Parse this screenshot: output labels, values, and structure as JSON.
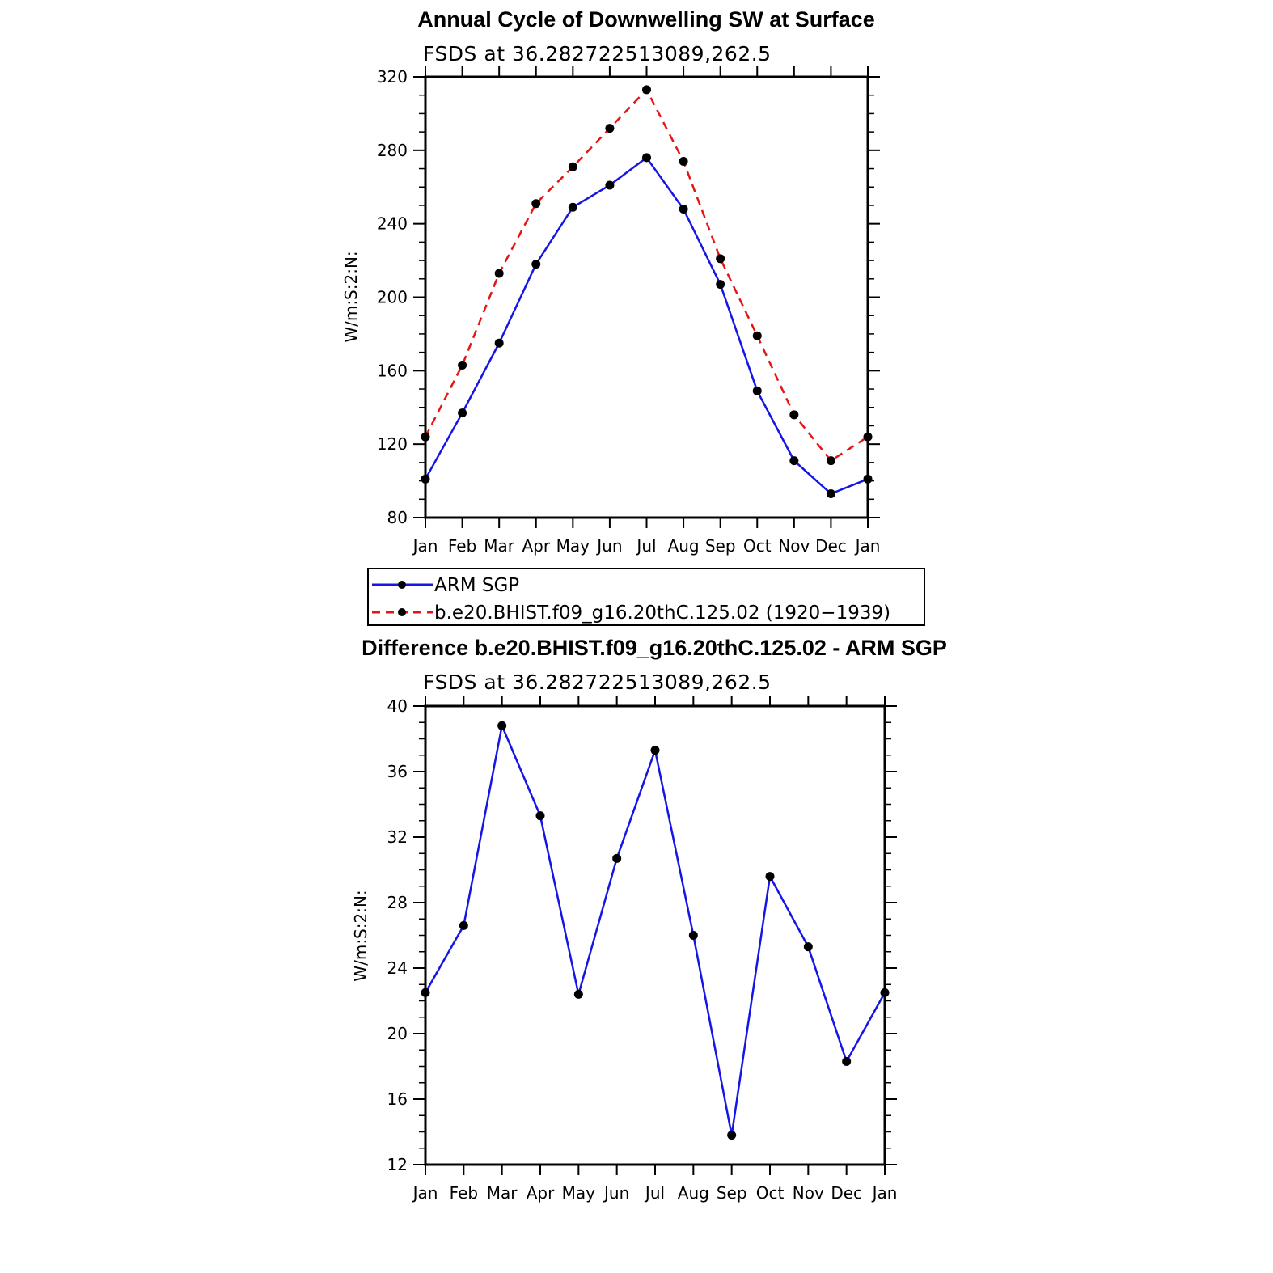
{
  "chart_data": [
    {
      "type": "line",
      "title": "Annual Cycle of Downwelling SW at Surface",
      "subtitle": "FSDS at 36.282722513089,262.5",
      "ylabel": "W/m:S:2:N:",
      "xlabel": "",
      "categories": [
        "Jan",
        "Feb",
        "Mar",
        "Apr",
        "May",
        "Jun",
        "Jul",
        "Aug",
        "Sep",
        "Oct",
        "Nov",
        "Dec",
        "Jan"
      ],
      "ylim": [
        80,
        320
      ],
      "yticks": [
        80,
        120,
        160,
        200,
        240,
        280,
        320
      ],
      "series": [
        {
          "name": "ARM SGP",
          "color": "#1515e6",
          "dash": "solid",
          "values": [
            101,
            137,
            175,
            218,
            249,
            261,
            276,
            248,
            207,
            149,
            111,
            93,
            101
          ]
        },
        {
          "name": "b.e20.BHIST.f09_g16.20thC.125.02 (1920−1939)",
          "color": "#e61515",
          "dash": "dashed",
          "values": [
            124,
            163,
            213,
            251,
            271,
            292,
            313,
            274,
            221,
            179,
            136,
            111,
            124
          ]
        }
      ],
      "legend": "below"
    },
    {
      "type": "line",
      "title": "Difference b.e20.BHIST.f09_g16.20thC.125.02 - ARM SGP",
      "subtitle": "FSDS at 36.282722513089,262.5",
      "ylabel": "W/m:S:2:N:",
      "xlabel": "",
      "categories": [
        "Jan",
        "Feb",
        "Mar",
        "Apr",
        "May",
        "Jun",
        "Jul",
        "Aug",
        "Sep",
        "Oct",
        "Nov",
        "Dec",
        "Jan"
      ],
      "ylim": [
        12,
        40
      ],
      "yticks": [
        12,
        16,
        20,
        24,
        28,
        32,
        36,
        40
      ],
      "series": [
        {
          "color": "#1515e6",
          "dash": "solid",
          "values": [
            22.5,
            26.6,
            38.8,
            33.3,
            22.4,
            30.7,
            37.3,
            26.0,
            13.8,
            29.6,
            25.3,
            18.3,
            22.5
          ]
        }
      ]
    }
  ]
}
